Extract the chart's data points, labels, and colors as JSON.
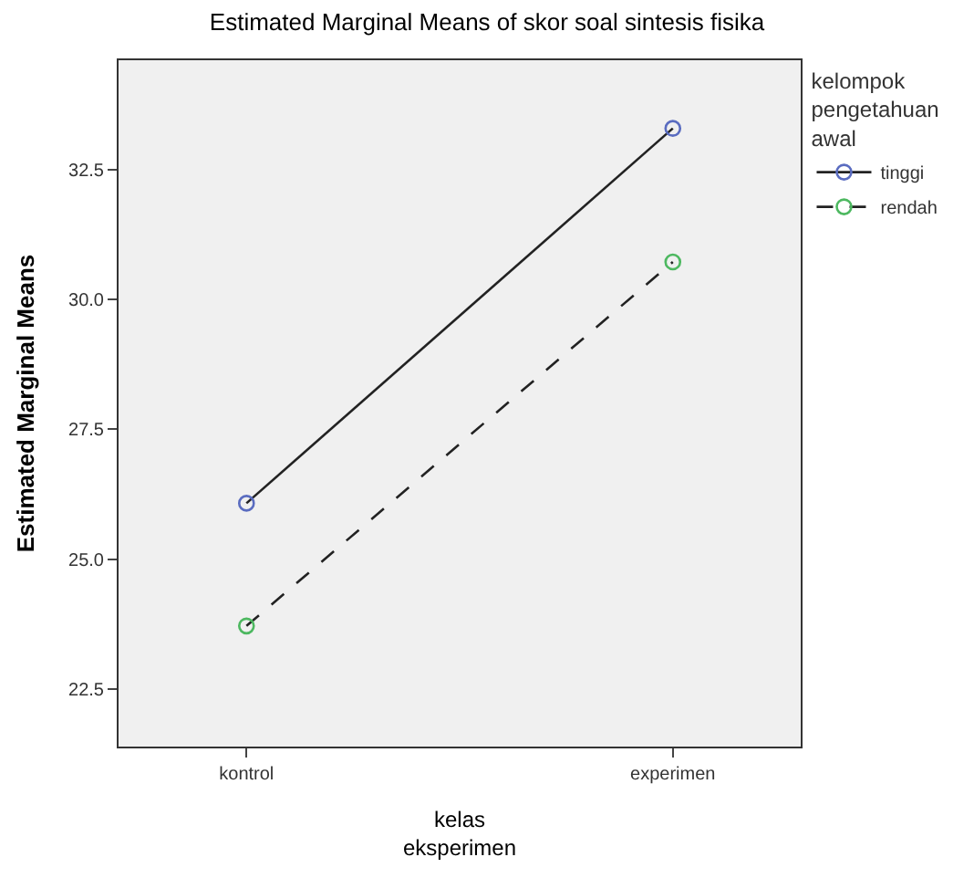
{
  "chart_data": {
    "type": "line",
    "title": "Estimated Marginal Means of skor soal sintesis fisika",
    "xlabel": "kelas\neksperimen",
    "ylabel": "Estimated Marginal Means",
    "legend_title": "kelompok\npengetahuan\nawal",
    "categories": [
      "kontrol",
      "experimen"
    ],
    "series": [
      {
        "name": "tinggi",
        "color": "#5a6cc0",
        "values": [
          26.08,
          33.29
        ],
        "line_style": "solid"
      },
      {
        "name": "rendah",
        "color": "#4db860",
        "values": [
          23.72,
          30.72
        ],
        "line_style": "dashed"
      }
    ],
    "ylim": [
      21.4,
      34.6
    ],
    "yticks": [
      22.5,
      {
        "value": 25,
        "label": "25.0"
      },
      27.5,
      {
        "value": 30,
        "label": "30.0"
      },
      32.5
    ],
    "grid": false,
    "legend": "top right",
    "marker": "circle"
  }
}
